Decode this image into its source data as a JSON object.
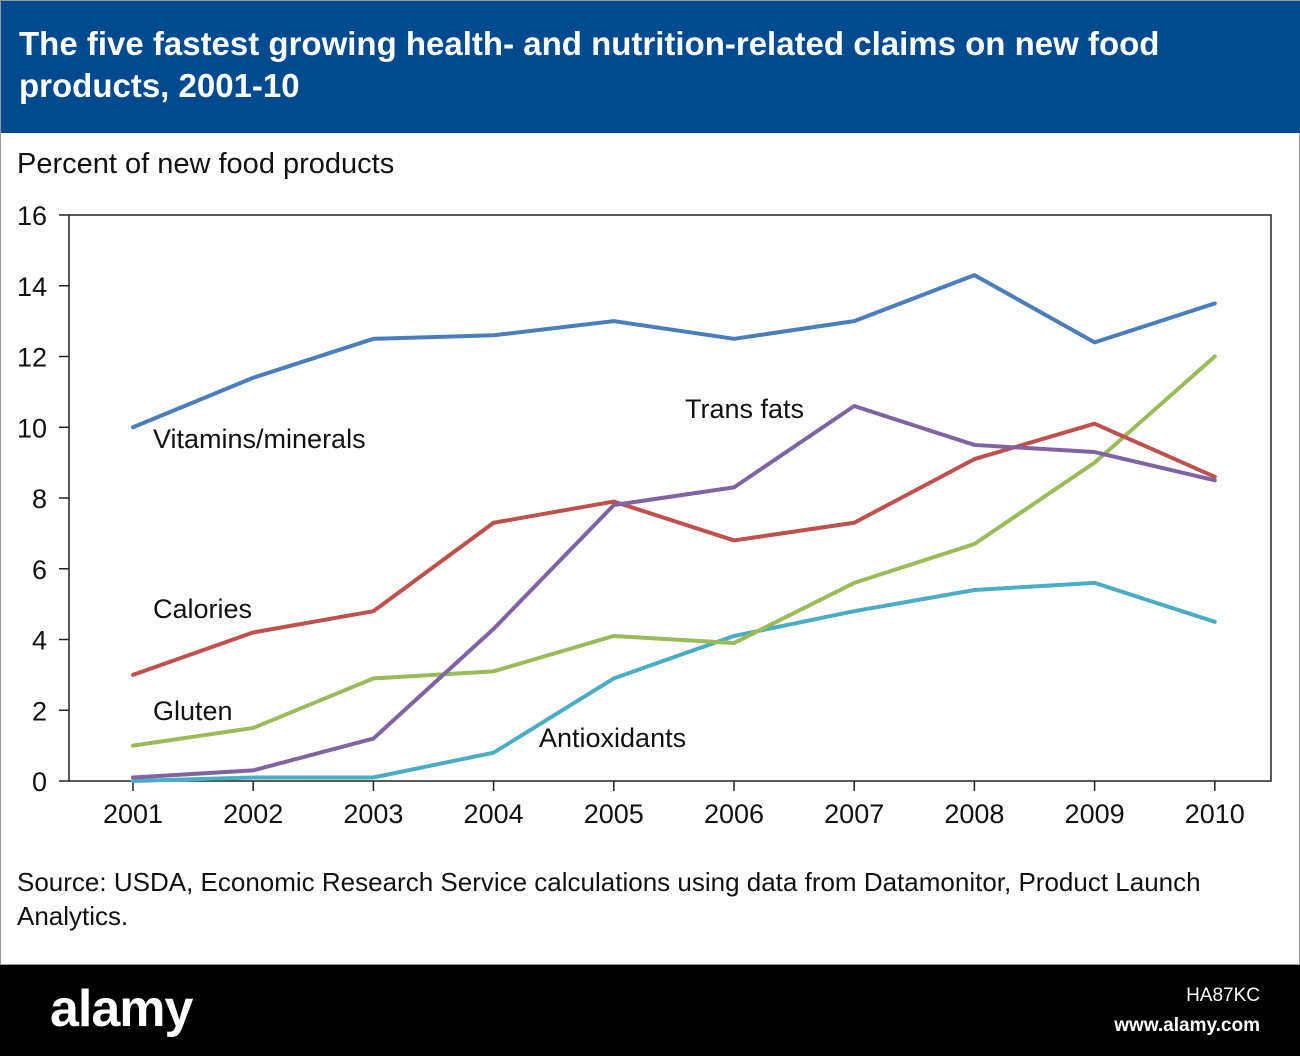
{
  "header": {
    "title": "The five fastest growing health- and nutrition-related claims on new food products, 2001-10"
  },
  "chart_data": {
    "type": "line",
    "title": "The five fastest growing health- and nutrition-related claims on new food products, 2001-10",
    "ylabel": "Percent of new food  products",
    "xlabel": "",
    "ylim": [
      0,
      16
    ],
    "yticks": [
      0,
      2,
      4,
      6,
      8,
      10,
      12,
      14,
      16
    ],
    "categories": [
      "2001",
      "2002",
      "2003",
      "2004",
      "2005",
      "2006",
      "2007",
      "2008",
      "2009",
      "2010"
    ],
    "grid": false,
    "series": [
      {
        "name": "Vitamins/minerals",
        "color": "#4A7EBB",
        "values": [
          10.0,
          11.4,
          12.5,
          12.6,
          13.0,
          12.5,
          13.0,
          14.3,
          12.4,
          13.5
        ]
      },
      {
        "name": "Trans fats",
        "color": "#8064A2",
        "values": [
          0.1,
          0.3,
          1.2,
          4.3,
          7.8,
          8.3,
          10.6,
          9.5,
          9.3,
          8.5
        ]
      },
      {
        "name": "Calories",
        "color": "#C0504D",
        "values": [
          3.0,
          4.2,
          4.8,
          7.3,
          7.9,
          6.8,
          7.3,
          9.1,
          10.1,
          8.6
        ]
      },
      {
        "name": "Gluten",
        "color": "#9BBB59",
        "values": [
          1.0,
          1.5,
          2.9,
          3.1,
          4.1,
          3.9,
          5.6,
          6.7,
          9.0,
          12.0
        ]
      },
      {
        "name": "Antioxidants",
        "color": "#4BACC6",
        "values": [
          0.0,
          0.1,
          0.1,
          0.8,
          2.9,
          4.1,
          4.8,
          5.4,
          5.6,
          4.5
        ]
      }
    ]
  },
  "source": "Source: USDA, Economic Research Service calculations using data from Datamonitor, Product Launch Analytics.",
  "footer": {
    "brand": "alamy",
    "stock_id": "HA87KC",
    "url": "www.alamy.com"
  }
}
